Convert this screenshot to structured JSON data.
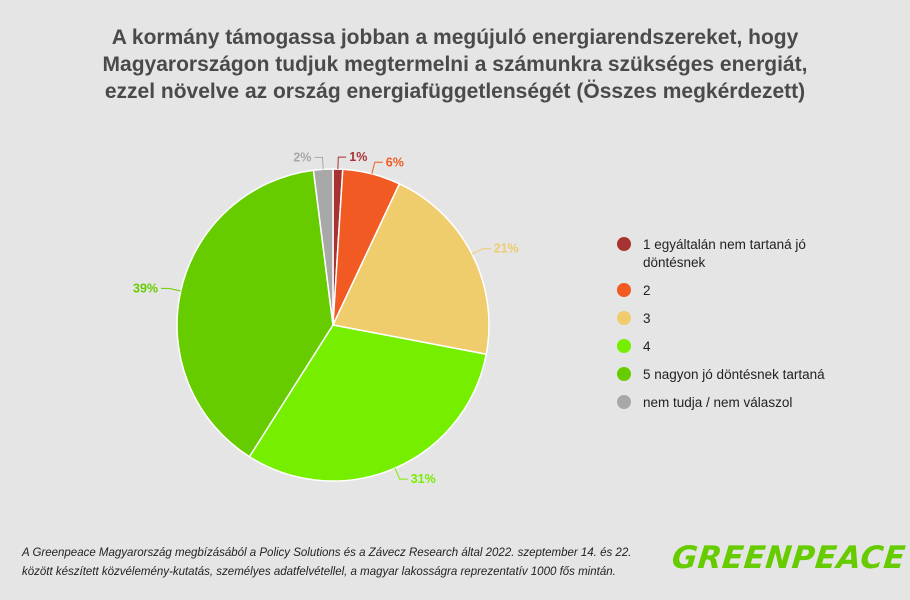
{
  "header": {
    "title_lines": [
      "A kormány támogassa jobban a megújuló energiarendszereket, hogy",
      "Magyarországon tudjuk megtermelni a számunkra szükséges energiát,",
      "ezzel növelve az ország energiafüggetlenségét (Összes megkérdezett)"
    ]
  },
  "chart_data": {
    "type": "pie",
    "title": "A kormány támogassa jobban a megújuló energiarendszereket, hogy Magyarországon tudjuk megtermelni a számunkra szükséges energiát, ezzel növelve az ország energiafüggetlenségét (Összes megkérdezett)",
    "unit": "%",
    "slices": [
      {
        "label": "1 egyáltalán nem tartaná jó döntésnek",
        "value": 1,
        "display": "1%",
        "color": "#a83232"
      },
      {
        "label": "2",
        "value": 6,
        "display": "6%",
        "color": "#f15a22"
      },
      {
        "label": "3",
        "value": 21,
        "display": "21%",
        "color": "#efcc6c"
      },
      {
        "label": "4",
        "value": 31,
        "display": "31%",
        "color": "#76ee00"
      },
      {
        "label": "5 nagyon jó döntésnek tartaná",
        "value": 39,
        "display": "39%",
        "color": "#66cc00"
      },
      {
        "label": "nem tudja / nem válaszol",
        "value": 2,
        "display": "2%",
        "color": "#a8a8a8"
      }
    ],
    "legend_position": "right"
  },
  "footnote": {
    "line1": "A Greenpeace Magyarország megbízásából a Policy Solutions és a Závecz Research által 2022. szeptember 14. és 22.",
    "line2": "között készített közvélemény-kutatás, személyes adatfelvétellel, a magyar lakosságra reprezentatív 1000 fős mintán."
  },
  "logo": {
    "text": "GREENPEACE",
    "color": "#66cc00"
  }
}
